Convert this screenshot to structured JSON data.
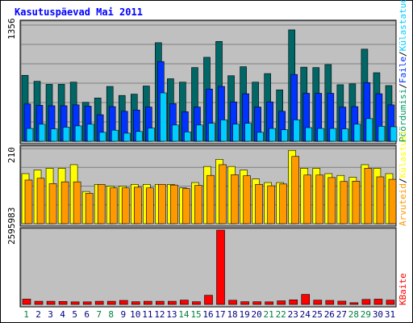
{
  "title": "Kasutuspäevad Mai 2011",
  "chart_data": {
    "type": "bar",
    "categories": [
      "1",
      "2",
      "3",
      "4",
      "5",
      "6",
      "7",
      "8",
      "9",
      "10",
      "11",
      "12",
      "13",
      "14",
      "15",
      "16",
      "17",
      "18",
      "19",
      "20",
      "21",
      "22",
      "23",
      "24",
      "25",
      "26",
      "27",
      "28",
      "29",
      "30",
      "31"
    ],
    "weekend_days": [
      "1",
      "7",
      "8",
      "14",
      "15",
      "21",
      "22",
      "28",
      "29"
    ],
    "panels": [
      {
        "id": "top",
        "max_label": "1356",
        "ymax": 1356,
        "series": [
          {
            "name": "Pöördumisi",
            "color": "#006666",
            "values": [
              770,
              700,
              665,
              665,
              690,
              455,
              505,
              640,
              535,
              550,
              645,
              1150,
              730,
              690,
              860,
              980,
              1165,
              765,
              870,
              690,
              790,
              600,
              1300,
              865,
              860,
              895,
              660,
              670,
              1075,
              800,
              650
            ]
          },
          {
            "name": "Faile",
            "color": "#0033ff",
            "values": [
              435,
              420,
              415,
              415,
              425,
              410,
              310,
              405,
              350,
              365,
              400,
              930,
              440,
              345,
              400,
              610,
              640,
              460,
              555,
              400,
              460,
              350,
              780,
              560,
              560,
              560,
              400,
              405,
              685,
              555,
              425
            ]
          },
          {
            "name": "Külastatud lehti",
            "color": "#00ccff",
            "values": [
              150,
              200,
              145,
              165,
              180,
              200,
              105,
              130,
              95,
              115,
              155,
              565,
              190,
              110,
              190,
              210,
              250,
              200,
              210,
              105,
              150,
              135,
              250,
              160,
              150,
              150,
              145,
              200,
              265,
              175,
              170
            ]
          }
        ]
      },
      {
        "id": "middle",
        "max_label": "210",
        "ymax": 210,
        "series": [
          {
            "name": "Külastusi",
            "color": "#ffff00",
            "values": [
              140,
              150,
              155,
              155,
              165,
              90,
              110,
              105,
              105,
              110,
              110,
              110,
              110,
              100,
              115,
              160,
              180,
              160,
              150,
              125,
              115,
              115,
              205,
              155,
              155,
              140,
              135,
              130,
              165,
              155,
              140
            ]
          },
          {
            "name": "Arvuteid",
            "color": "#ff9900",
            "values": [
              122,
              127,
              112,
              117,
              117,
              85,
              110,
              100,
              100,
              102,
              100,
              110,
              108,
              98,
              107,
              135,
              165,
              137,
              134,
              110,
              106,
              111,
              188,
              136,
              136,
              129,
              118,
              119,
              155,
              131,
              124
            ]
          }
        ]
      },
      {
        "id": "bottom",
        "max_label": "2595983",
        "ymax": 2595983,
        "series": [
          {
            "name": "KBaite",
            "color": "#ff0000",
            "values": [
              185000,
              110000,
              110000,
              105000,
              90000,
              90000,
              110000,
              110000,
              140000,
              95000,
              110000,
              110000,
              110000,
              150000,
              95000,
              320000,
              2595983,
              145000,
              95000,
              95000,
              90000,
              125000,
              160000,
              350000,
              150000,
              140000,
              115000,
              60000,
              175000,
              185000,
              150000
            ]
          }
        ]
      }
    ],
    "right_labels": {
      "top": [
        {
          "text": "Pöördumisi",
          "color": "#009966"
        },
        {
          "text": "Faile",
          "color": "#0033ff"
        },
        {
          "text": "Külastatud lehti",
          "color": "#00ccff"
        }
      ],
      "middle": [
        {
          "text": "Arvuteid",
          "color": "#ff9900"
        },
        {
          "text": "Külastusi",
          "color": "#ffff00"
        }
      ],
      "bottom": [
        {
          "text": "KBaite",
          "color": "#ff0000"
        }
      ]
    },
    "separator": "/",
    "colors": {
      "title": "#0000ff",
      "plot_bg": "#c0c0c0",
      "weekday_label": "#000080",
      "weekend_label": "#008040",
      "separator": "#000000"
    }
  }
}
